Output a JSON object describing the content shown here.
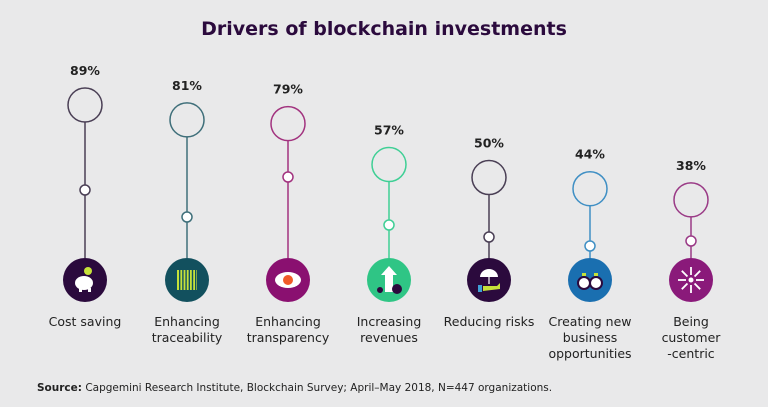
{
  "chart_data": {
    "type": "lollipop",
    "title": "Drivers of blockchain investments",
    "unit": "%",
    "categories": [
      "Cost saving",
      "Enhancing\ntraceability",
      "Enhancing\ntransparency",
      "Increasing\nrevenues",
      "Reducing risks",
      "Creating new\nbusiness\nopportunities",
      "Being\ncustomer\n-centric"
    ],
    "values": [
      89,
      81,
      79,
      57,
      50,
      44,
      38
    ],
    "value_labels": [
      "89%",
      "81%",
      "79%",
      "57%",
      "50%",
      "44%",
      "38%"
    ],
    "line_colors": [
      "#4a3f55",
      "#3f6f7a",
      "#a2337f",
      "#3fcf95",
      "#4a3f55",
      "#3f8fc4",
      "#9a3a86"
    ],
    "icon_fill_colors": [
      "#2b0a3d",
      "#12505e",
      "#8a1070",
      "#2fc585",
      "#2b0a3d",
      "#1a6fb0",
      "#8a1a7a"
    ],
    "icons": [
      "piggy-bank-icon",
      "barcode-icon",
      "eye-icon",
      "rising-arrow-icon",
      "umbrella-hand-icon",
      "binoculars-icon",
      "converging-arrows-icon"
    ]
  },
  "source": {
    "label": "Source:",
    "text": " Capgemini Research Institute, Blockchain Survey; April–May 2018, N=447 organizations."
  }
}
